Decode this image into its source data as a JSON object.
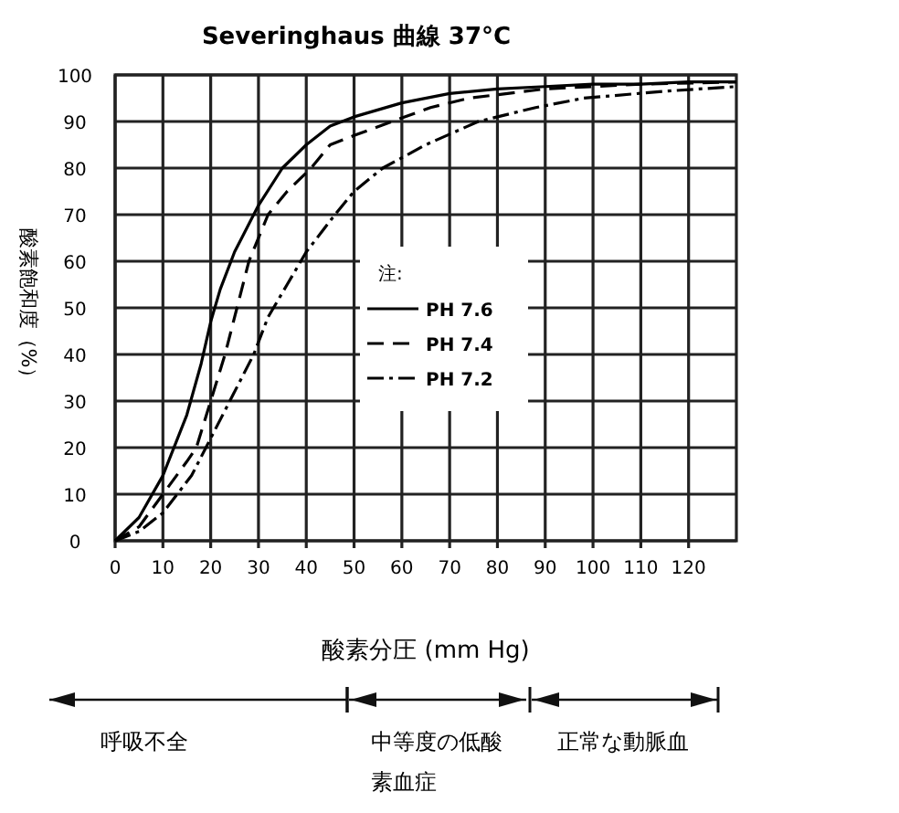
{
  "chart_data": {
    "type": "line",
    "title": "Severinghaus 曲線  37°C",
    "xlabel": "酸素分圧 (mm Hg)",
    "ylabel": "酸素飽和度（%）",
    "legend_title": "注:",
    "series": [
      {
        "name": "PH 7.6",
        "color": "#000000",
        "line_style": "solid",
        "x": [
          0,
          5,
          10,
          15,
          18,
          20,
          22,
          25,
          30,
          35,
          40,
          45,
          50,
          60,
          70,
          80,
          90,
          100,
          110,
          120,
          130
        ],
        "values": [
          0,
          5,
          14,
          27,
          38,
          47,
          54,
          62,
          72,
          80,
          85,
          89,
          91,
          94,
          96,
          97,
          97.5,
          98,
          98,
          98.5,
          98.5
        ]
      },
      {
        "name": "PH 7.4",
        "color": "#000000",
        "line_style": "dashed",
        "x": [
          0,
          5,
          10,
          15,
          17,
          20,
          23,
          25.5,
          28,
          32,
          36,
          41,
          45,
          50,
          58,
          66,
          74,
          90,
          110,
          130
        ],
        "values": [
          0,
          3,
          10,
          17,
          20,
          30,
          40,
          50,
          60,
          70,
          75,
          80,
          85,
          87,
          90,
          93,
          95,
          97,
          98,
          98.5
        ]
      },
      {
        "name": "PH 7.2",
        "color": "#000000",
        "line_style": "dashdot",
        "x": [
          0,
          5,
          10,
          13,
          16,
          19,
          24,
          29,
          32,
          36,
          40,
          46,
          50,
          56,
          65,
          76,
          88,
          98,
          115,
          130
        ],
        "values": [
          0,
          2,
          6,
          10,
          14,
          20,
          30,
          40,
          48,
          55,
          62,
          70,
          75,
          80,
          85,
          90,
          93,
          95,
          96.5,
          97.5
        ]
      }
    ],
    "xlim": [
      0,
      130
    ],
    "xticks": [
      0,
      10,
      20,
      30,
      40,
      50,
      60,
      70,
      80,
      90,
      100,
      110,
      120
    ],
    "ylim": [
      0,
      100
    ],
    "yticks": [
      0,
      10,
      20,
      30,
      40,
      50,
      60,
      70,
      80,
      90,
      100
    ],
    "grid": true,
    "legend": "center",
    "marker": "none",
    "annotations": [
      "呼吸不全",
      "中等度の低酸素血症",
      "正常な動脈血"
    ]
  }
}
